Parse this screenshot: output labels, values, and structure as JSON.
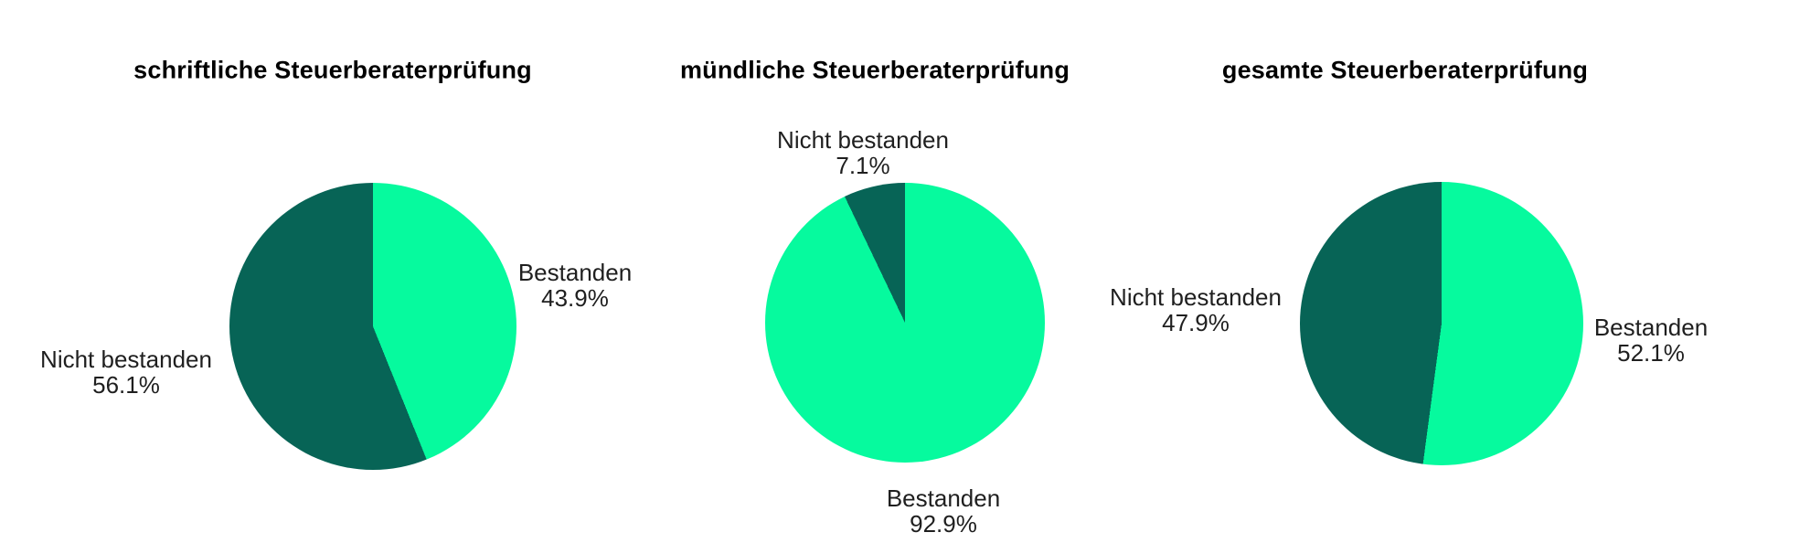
{
  "page": {
    "background": "#ffffff"
  },
  "colors": {
    "bestanden": "#06FA9E",
    "nicht_bestanden": "#076456",
    "title_text": "#000000",
    "label_text": "#1f1f1f"
  },
  "chart_data": [
    {
      "type": "pie",
      "title": "schriftliche Steuerberaterprüfung",
      "direction": "clockwise",
      "start_angle": "12-oclock",
      "legend": "none",
      "slices": [
        {
          "name": "Bestanden",
          "value_pct": 43.9,
          "pct_label": "43.9%",
          "color": "#06FA9E",
          "label_position": "right"
        },
        {
          "name": "Nicht bestanden",
          "value_pct": 56.1,
          "pct_label": "56.1%",
          "color": "#076456",
          "label_position": "left"
        }
      ]
    },
    {
      "type": "pie",
      "title": "mündliche Steuerberaterprüfung",
      "direction": "clockwise",
      "start_angle": "12-oclock",
      "legend": "none",
      "slices": [
        {
          "name": "Bestanden",
          "value_pct": 92.9,
          "pct_label": "92.9%",
          "color": "#06FA9E",
          "label_position": "bottom"
        },
        {
          "name": "Nicht bestanden",
          "value_pct": 7.1,
          "pct_label": "7.1%",
          "color": "#076456",
          "label_position": "top"
        }
      ]
    },
    {
      "type": "pie",
      "title": "gesamte Steuerberaterprüfung",
      "direction": "clockwise",
      "start_angle": "12-oclock",
      "legend": "none",
      "slices": [
        {
          "name": "Bestanden",
          "value_pct": 52.1,
          "pct_label": "52.1%",
          "color": "#06FA9E",
          "label_position": "right"
        },
        {
          "name": "Nicht bestanden",
          "value_pct": 47.9,
          "pct_label": "47.9%",
          "color": "#076456",
          "label_position": "left"
        }
      ]
    }
  ]
}
